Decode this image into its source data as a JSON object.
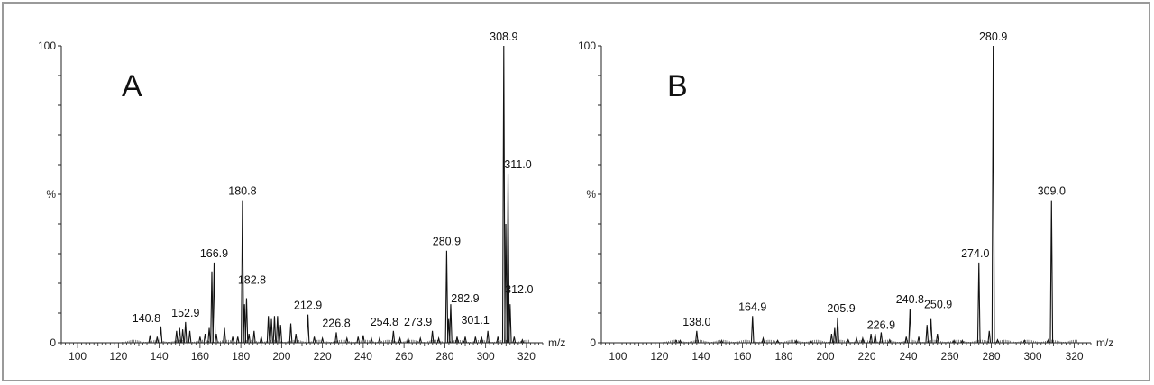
{
  "chart_data": [
    {
      "type": "line",
      "panel_label": "A",
      "x_axis_unit": "m/z",
      "y_tick_labels": [
        "0",
        "%",
        "100"
      ],
      "xlim": [
        92,
        328
      ],
      "ylim": [
        0,
        100
      ],
      "x_ticks": [
        100,
        120,
        140,
        160,
        180,
        200,
        220,
        240,
        260,
        280,
        300,
        320
      ],
      "peaks": [
        {
          "x": 135.5,
          "y": 2.5
        },
        {
          "x": 139,
          "y": 2
        },
        {
          "x": 140.8,
          "y": 5.5
        },
        {
          "x": 148.5,
          "y": 4
        },
        {
          "x": 150,
          "y": 5
        },
        {
          "x": 151.5,
          "y": 4.5
        },
        {
          "x": 152.9,
          "y": 7
        },
        {
          "x": 155,
          "y": 4
        },
        {
          "x": 160,
          "y": 2
        },
        {
          "x": 162.5,
          "y": 3
        },
        {
          "x": 164.5,
          "y": 5
        },
        {
          "x": 165.8,
          "y": 24
        },
        {
          "x": 166.9,
          "y": 27
        },
        {
          "x": 168,
          "y": 3
        },
        {
          "x": 172,
          "y": 5
        },
        {
          "x": 176,
          "y": 2
        },
        {
          "x": 178.5,
          "y": 2
        },
        {
          "x": 180.8,
          "y": 48
        },
        {
          "x": 181.8,
          "y": 13
        },
        {
          "x": 182.8,
          "y": 15
        },
        {
          "x": 184,
          "y": 3
        },
        {
          "x": 186.5,
          "y": 4
        },
        {
          "x": 190,
          "y": 2
        },
        {
          "x": 193.5,
          "y": 9
        },
        {
          "x": 195,
          "y": 8
        },
        {
          "x": 196.5,
          "y": 9
        },
        {
          "x": 198,
          "y": 9
        },
        {
          "x": 199.5,
          "y": 6
        },
        {
          "x": 204.5,
          "y": 6.5
        },
        {
          "x": 207,
          "y": 3
        },
        {
          "x": 212.9,
          "y": 9.5
        },
        {
          "x": 216,
          "y": 2
        },
        {
          "x": 220,
          "y": 1.5
        },
        {
          "x": 226.8,
          "y": 3.5
        },
        {
          "x": 232,
          "y": 1.5
        },
        {
          "x": 237.5,
          "y": 2
        },
        {
          "x": 240,
          "y": 2.5
        },
        {
          "x": 244,
          "y": 1.5
        },
        {
          "x": 248,
          "y": 1.5
        },
        {
          "x": 254.8,
          "y": 4
        },
        {
          "x": 258,
          "y": 1.5
        },
        {
          "x": 262,
          "y": 1.5
        },
        {
          "x": 268,
          "y": 1.5
        },
        {
          "x": 273.9,
          "y": 4
        },
        {
          "x": 277,
          "y": 1.5
        },
        {
          "x": 280.9,
          "y": 31
        },
        {
          "x": 281.9,
          "y": 8
        },
        {
          "x": 282.9,
          "y": 13
        },
        {
          "x": 286,
          "y": 2
        },
        {
          "x": 290,
          "y": 2
        },
        {
          "x": 295,
          "y": 2
        },
        {
          "x": 298,
          "y": 2
        },
        {
          "x": 301.1,
          "y": 4
        },
        {
          "x": 306,
          "y": 2
        },
        {
          "x": 308.9,
          "y": 100
        },
        {
          "x": 309.9,
          "y": 40
        },
        {
          "x": 311.0,
          "y": 57
        },
        {
          "x": 312.0,
          "y": 13
        },
        {
          "x": 314,
          "y": 2
        },
        {
          "x": 318,
          "y": 1
        }
      ],
      "labels": [
        {
          "x": 140.8,
          "y": 5.5,
          "text": "140.8"
        },
        {
          "x": 152.9,
          "y": 7,
          "text": "152.9"
        },
        {
          "x": 166.9,
          "y": 27,
          "text": "166.9"
        },
        {
          "x": 180.8,
          "y": 48,
          "text": "180.8"
        },
        {
          "x": 182.8,
          "y": 15,
          "text": "182.8"
        },
        {
          "x": 212.9,
          "y": 9.5,
          "text": "212.9"
        },
        {
          "x": 226.8,
          "y": 3.5,
          "text": "226.8"
        },
        {
          "x": 254.8,
          "y": 4,
          "text": "254.8"
        },
        {
          "x": 273.9,
          "y": 4,
          "text": "273.9"
        },
        {
          "x": 280.9,
          "y": 31,
          "text": "280.9"
        },
        {
          "x": 282.9,
          "y": 13,
          "text": "282.9"
        },
        {
          "x": 301.1,
          "y": 4,
          "text": "301.1"
        },
        {
          "x": 308.9,
          "y": 100,
          "text": "308.9"
        },
        {
          "x": 311.0,
          "y": 57,
          "text": "311.0"
        },
        {
          "x": 312.0,
          "y": 13,
          "text": "312.0"
        }
      ]
    },
    {
      "type": "line",
      "panel_label": "B",
      "x_axis_unit": "m/z",
      "y_tick_labels": [
        "0",
        "%",
        "100"
      ],
      "xlim": [
        92,
        328
      ],
      "ylim": [
        0,
        100
      ],
      "x_ticks": [
        100,
        120,
        140,
        160,
        180,
        200,
        220,
        240,
        260,
        280,
        300,
        320
      ],
      "peaks": [
        {
          "x": 128,
          "y": 0.8
        },
        {
          "x": 130,
          "y": 0.8
        },
        {
          "x": 138.0,
          "y": 4
        },
        {
          "x": 150,
          "y": 0.8
        },
        {
          "x": 164.9,
          "y": 9
        },
        {
          "x": 170,
          "y": 1.5
        },
        {
          "x": 177,
          "y": 0.8
        },
        {
          "x": 186,
          "y": 0.8
        },
        {
          "x": 193,
          "y": 0.8
        },
        {
          "x": 203,
          "y": 3
        },
        {
          "x": 204.5,
          "y": 5
        },
        {
          "x": 205.9,
          "y": 8.5
        },
        {
          "x": 211,
          "y": 1
        },
        {
          "x": 215,
          "y": 1.5
        },
        {
          "x": 218,
          "y": 1.5
        },
        {
          "x": 222,
          "y": 3
        },
        {
          "x": 224,
          "y": 3
        },
        {
          "x": 226.9,
          "y": 3.5
        },
        {
          "x": 231,
          "y": 1
        },
        {
          "x": 239,
          "y": 2
        },
        {
          "x": 240.8,
          "y": 11.5
        },
        {
          "x": 245,
          "y": 2
        },
        {
          "x": 249,
          "y": 6
        },
        {
          "x": 250.9,
          "y": 8
        },
        {
          "x": 254,
          "y": 3
        },
        {
          "x": 262,
          "y": 0.8
        },
        {
          "x": 266,
          "y": 0.8
        },
        {
          "x": 274.0,
          "y": 27
        },
        {
          "x": 279,
          "y": 4
        },
        {
          "x": 280.9,
          "y": 100
        },
        {
          "x": 283,
          "y": 1
        },
        {
          "x": 296,
          "y": 0.8
        },
        {
          "x": 307.5,
          "y": 1
        },
        {
          "x": 309.0,
          "y": 48
        }
      ],
      "labels": [
        {
          "x": 138.0,
          "y": 4,
          "text": "138.0"
        },
        {
          "x": 164.9,
          "y": 9,
          "text": "164.9"
        },
        {
          "x": 205.9,
          "y": 8.5,
          "text": "205.9"
        },
        {
          "x": 226.9,
          "y": 3.5,
          "text": "226.9"
        },
        {
          "x": 240.8,
          "y": 11.5,
          "text": "240.8"
        },
        {
          "x": 250.9,
          "y": 8,
          "text": "250.9"
        },
        {
          "x": 274.0,
          "y": 27,
          "text": "274.0"
        },
        {
          "x": 280.9,
          "y": 100,
          "text": "280.9"
        },
        {
          "x": 309.0,
          "y": 48,
          "text": "309.0"
        }
      ]
    }
  ]
}
